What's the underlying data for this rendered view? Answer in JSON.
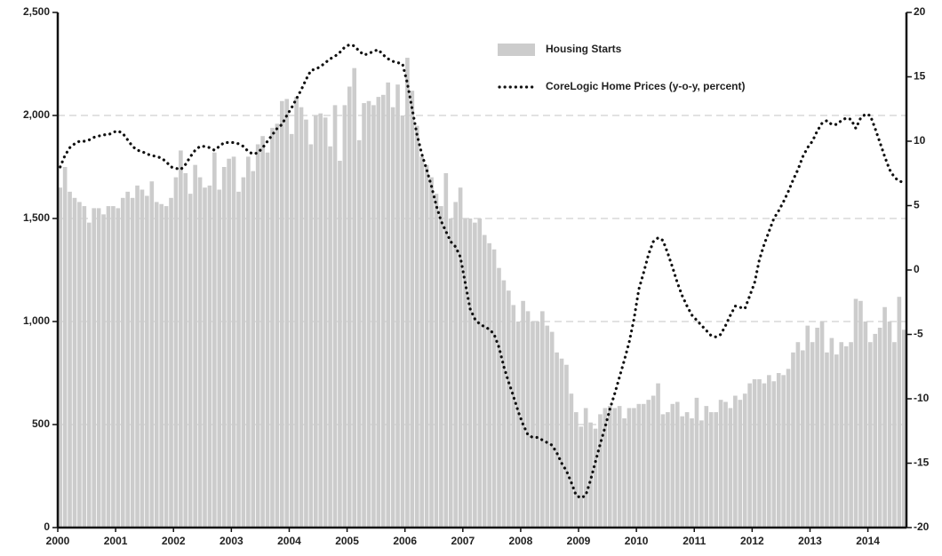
{
  "chart_data": {
    "type": "bar",
    "categories": [
      "2000",
      null,
      null,
      null,
      null,
      null,
      null,
      null,
      null,
      null,
      null,
      null,
      "2001",
      null,
      null,
      null,
      null,
      null,
      null,
      null,
      null,
      null,
      null,
      null,
      "2002",
      null,
      null,
      null,
      null,
      null,
      null,
      null,
      null,
      null,
      null,
      null,
      "2003",
      null,
      null,
      null,
      null,
      null,
      null,
      null,
      null,
      null,
      null,
      null,
      "2004",
      null,
      null,
      null,
      null,
      null,
      null,
      null,
      null,
      null,
      null,
      null,
      "2005",
      null,
      null,
      null,
      null,
      null,
      null,
      null,
      null,
      null,
      null,
      null,
      "2006",
      null,
      null,
      null,
      null,
      null,
      null,
      null,
      null,
      null,
      null,
      null,
      "2007",
      null,
      null,
      null,
      null,
      null,
      null,
      null,
      null,
      null,
      null,
      null,
      "2008",
      null,
      null,
      null,
      null,
      null,
      null,
      null,
      null,
      null,
      null,
      null,
      "2009",
      null,
      null,
      null,
      null,
      null,
      null,
      null,
      null,
      null,
      null,
      null,
      "2010",
      null,
      null,
      null,
      null,
      null,
      null,
      null,
      null,
      null,
      null,
      null,
      "2011",
      null,
      null,
      null,
      null,
      null,
      null,
      null,
      null,
      null,
      null,
      null,
      "2012",
      null,
      null,
      null,
      null,
      null,
      null,
      null,
      null,
      null,
      null,
      null,
      "2013",
      null,
      null,
      null,
      null,
      null,
      null,
      null,
      null,
      null,
      null,
      null,
      "2014",
      null,
      null,
      null,
      null,
      null,
      null,
      null
    ],
    "series": [
      {
        "name": "Housing Starts",
        "type": "bar",
        "color": "#cccccc",
        "values": [
          1650,
          1750,
          1630,
          1600,
          1580,
          1560,
          1480,
          1550,
          1550,
          1520,
          1560,
          1560,
          1550,
          1600,
          1630,
          1600,
          1660,
          1640,
          1610,
          1680,
          1580,
          1570,
          1560,
          1600,
          1700,
          1830,
          1720,
          1620,
          1760,
          1700,
          1650,
          1660,
          1820,
          1640,
          1750,
          1790,
          1800,
          1630,
          1700,
          1800,
          1730,
          1860,
          1900,
          1820,
          1940,
          1960,
          2070,
          2080,
          1910,
          2090,
          2040,
          1980,
          1860,
          2000,
          2010,
          1990,
          1850,
          2050,
          1780,
          2050,
          2140,
          2230,
          1880,
          2060,
          2070,
          2050,
          2090,
          2100,
          2160,
          2040,
          2150,
          2000,
          2280,
          2120,
          1950,
          1800,
          1760,
          1700,
          1620,
          1560,
          1720,
          1500,
          1580,
          1650,
          1500,
          1500,
          1480,
          1500,
          1420,
          1380,
          1350,
          1260,
          1200,
          1150,
          1080,
          1000,
          1100,
          1050,
          1000,
          1000,
          1050,
          980,
          950,
          850,
          820,
          790,
          650,
          560,
          490,
          580,
          510,
          480,
          550,
          580,
          590,
          580,
          590,
          530,
          580,
          580,
          600,
          600,
          620,
          640,
          700,
          550,
          560,
          600,
          610,
          540,
          560,
          530,
          630,
          520,
          590,
          560,
          560,
          620,
          610,
          580,
          640,
          620,
          650,
          700,
          720,
          720,
          700,
          740,
          710,
          750,
          740,
          770,
          850,
          900,
          860,
          980,
          900,
          970,
          1000,
          850,
          920,
          840,
          900,
          880,
          900,
          1110,
          1100,
          1000,
          900,
          940,
          970,
          1070,
          1000,
          900,
          1120,
          960
        ]
      },
      {
        "name": "CoreLogic Home Prices (y-o-y, percent)",
        "type": "line",
        "axis": "y2",
        "color": "#111111",
        "values": [
          8.0,
          8.9,
          9.5,
          9.8,
          10.0,
          10.0,
          10.1,
          10.3,
          10.4,
          10.5,
          10.5,
          10.7,
          10.8,
          10.6,
          10.1,
          9.6,
          9.3,
          9.2,
          9.0,
          8.9,
          8.8,
          8.7,
          8.4,
          8.0,
          7.9,
          7.8,
          8.2,
          8.8,
          9.3,
          9.6,
          9.6,
          9.5,
          9.3,
          9.6,
          9.9,
          9.9,
          9.9,
          9.8,
          9.6,
          9.2,
          9.0,
          9.1,
          9.5,
          10.0,
          10.5,
          11.0,
          11.3,
          12.0,
          12.6,
          13.3,
          14.0,
          14.8,
          15.5,
          15.6,
          15.8,
          16.1,
          16.4,
          16.6,
          16.9,
          17.3,
          17.5,
          17.4,
          17.0,
          16.7,
          16.8,
          17.0,
          17.1,
          16.7,
          16.4,
          16.2,
          16.1,
          16.0,
          14.5,
          12.5,
          10.5,
          9.0,
          7.8,
          6.5,
          5.0,
          3.8,
          3.0,
          2.2,
          1.8,
          1.0,
          -1.0,
          -3.0,
          -3.8,
          -4.2,
          -4.4,
          -4.6,
          -5.0,
          -6.0,
          -7.5,
          -8.7,
          -9.8,
          -11.0,
          -12.0,
          -12.8,
          -13.0,
          -13.0,
          -13.2,
          -13.4,
          -13.6,
          -14.2,
          -15.0,
          -15.6,
          -16.5,
          -17.5,
          -17.7,
          -17.5,
          -16.3,
          -14.9,
          -13.5,
          -12.2,
          -10.8,
          -9.6,
          -8.3,
          -7.0,
          -5.6,
          -3.8,
          -1.5,
          -0.2,
          1.2,
          2.2,
          2.5,
          2.3,
          1.3,
          0.2,
          -1.0,
          -2.0,
          -2.8,
          -3.5,
          -3.9,
          -4.3,
          -4.7,
          -5.1,
          -5.2,
          -5.0,
          -4.3,
          -3.5,
          -2.8,
          -2.9,
          -3.0,
          -2.0,
          -1.0,
          0.8,
          2.0,
          3.0,
          4.0,
          4.6,
          5.3,
          6.1,
          7.0,
          7.8,
          8.8,
          9.5,
          10.0,
          10.8,
          11.4,
          11.6,
          11.3,
          11.3,
          11.6,
          11.8,
          11.7,
          11.0,
          11.8,
          12.1,
          12.0,
          11.0,
          9.9,
          8.8,
          7.8,
          7.2,
          6.9,
          6.8
        ]
      }
    ],
    "ylim": [
      0,
      2500
    ],
    "yticks": [
      0,
      500,
      {
        "value": 1000,
        "label": "1,000"
      },
      {
        "value": 1500,
        "label": "1,500"
      },
      {
        "value": 2000,
        "label": "2,000"
      },
      {
        "value": 2500,
        "label": "2,500"
      }
    ],
    "y2lim": [
      -20,
      20
    ],
    "y2ticks": [
      -20,
      -15,
      -10,
      -5,
      0,
      5,
      10,
      15,
      20
    ],
    "grid": true,
    "legend": "upper right"
  }
}
